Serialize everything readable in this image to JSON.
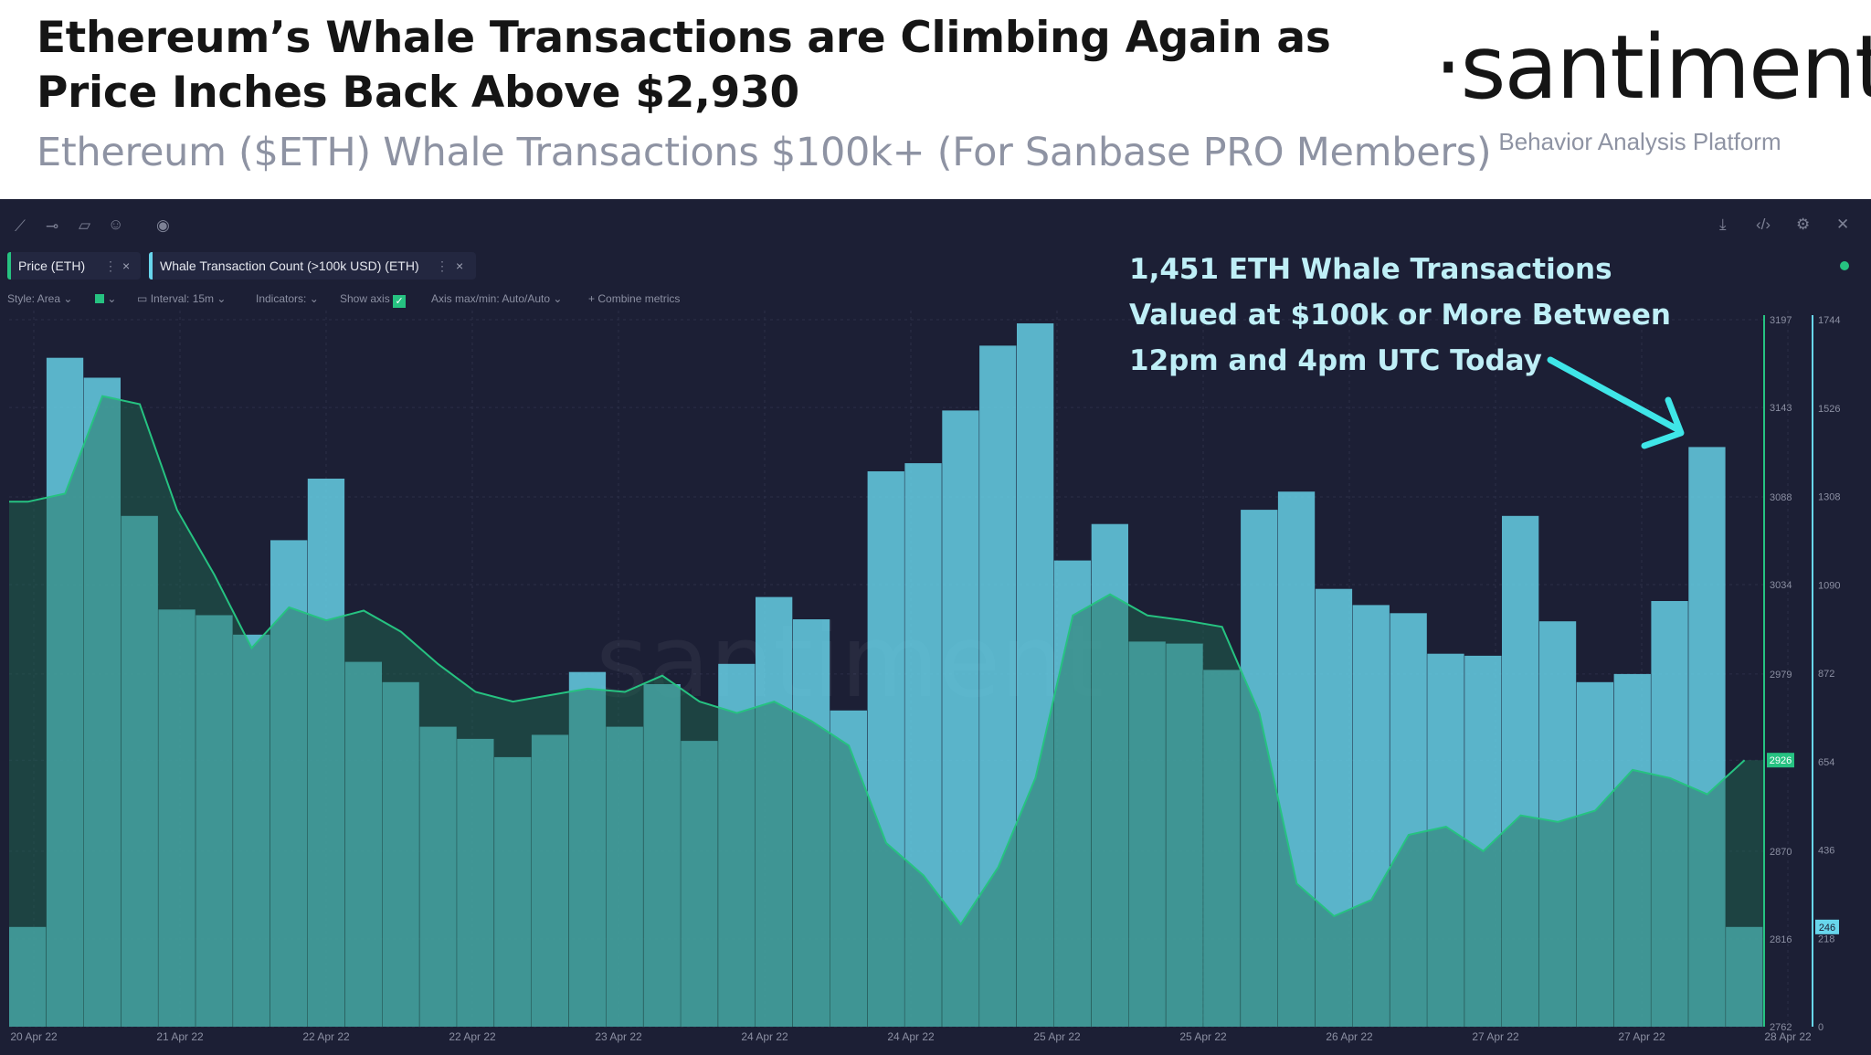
{
  "header": {
    "title_line1": "Ethereum’s Whale Transactions are Climbing Again as",
    "title_line2": "Price Inches Back Above $2,930",
    "subtitle": "Ethereum ($ETH) Whale Transactions $100k+ (For Sanbase PRO Members)",
    "logo": "·santiment·",
    "tagline": "Behavior Analysis Platform"
  },
  "toolbar": {
    "left_icons": [
      "draw-line-icon",
      "horizontal-line-icon",
      "note-icon",
      "emoji-icon",
      "eye-icon"
    ],
    "right_icons": [
      "download-icon",
      "embed-code-icon",
      "settings-gear-icon",
      "close-icon"
    ]
  },
  "metrics": [
    {
      "label": "Price (ETH)",
      "color": "#26c281"
    },
    {
      "label": "Whale Transaction Count (>100k USD) (ETH)",
      "color": "#68d6ec"
    }
  ],
  "options": {
    "style": "Style: Area",
    "interval": "Interval: 15m",
    "indicators": "Indicators:",
    "show_axis": "Show axis",
    "axis_minmax": "Axis max/min: Auto/Auto",
    "combine": "Combine metrics"
  },
  "annotation": {
    "line1": "1,451 ETH Whale Transactions",
    "line2": "Valued at $100k or More Between",
    "line3": "12pm and 4pm UTC Today",
    "color": "#bfeff7"
  },
  "watermark": "santiment",
  "chart_data": {
    "type": "area",
    "x_tick_labels": [
      "20 Apr 22",
      "21 Apr 22",
      "22 Apr 22",
      "22 Apr 22",
      "23 Apr 22",
      "24 Apr 22",
      "24 Apr 22",
      "25 Apr 22",
      "25 Apr 22",
      "26 Apr 22",
      "27 Apr 22",
      "27 Apr 22",
      "28 Apr 22"
    ],
    "price_axis": {
      "ticks": [
        3197,
        3143,
        3088,
        3034,
        2979,
        2926,
        2870,
        2816,
        2762
      ],
      "current_label": "2926",
      "range": [
        2762,
        3197
      ],
      "color": "#26c281"
    },
    "whale_axis": {
      "ticks": [
        1744,
        1526,
        1308,
        1090,
        872,
        654,
        436,
        218,
        0
      ],
      "current_label": "246",
      "range": [
        0,
        1744
      ],
      "color": "#68d6ec"
    },
    "series": [
      {
        "name": "Whale Transaction Count (>100k USD) (ETH)",
        "color": "#68d6ec",
        "values": [
          246,
          1650,
          1601,
          1260,
          1029,
          1015,
          967,
          1200,
          1352,
          900,
          850,
          740,
          710,
          665,
          720,
          875,
          740,
          845,
          705,
          895,
          1060,
          1005,
          780,
          1370,
          1390,
          1520,
          1680,
          1735,
          1150,
          1240,
          950,
          945,
          880,
          1275,
          1320,
          1080,
          1040,
          1020,
          920,
          915,
          1260,
          1000,
          850,
          870,
          1050,
          1430,
          246
        ]
      },
      {
        "name": "Price (ETH)",
        "color": "#26c281",
        "values": [
          3085,
          3090,
          3150,
          3145,
          3080,
          3040,
          2995,
          3020,
          3012,
          3018,
          3005,
          2985,
          2968,
          2962,
          2966,
          2970,
          2968,
          2978,
          2962,
          2955,
          2962,
          2950,
          2935,
          2875,
          2855,
          2825,
          2860,
          2915,
          3015,
          3028,
          3015,
          3012,
          3008,
          2955,
          2850,
          2830,
          2840,
          2880,
          2885,
          2870,
          2892,
          2888,
          2895,
          2920,
          2915,
          2905,
          2926
        ]
      }
    ],
    "grid": true
  }
}
